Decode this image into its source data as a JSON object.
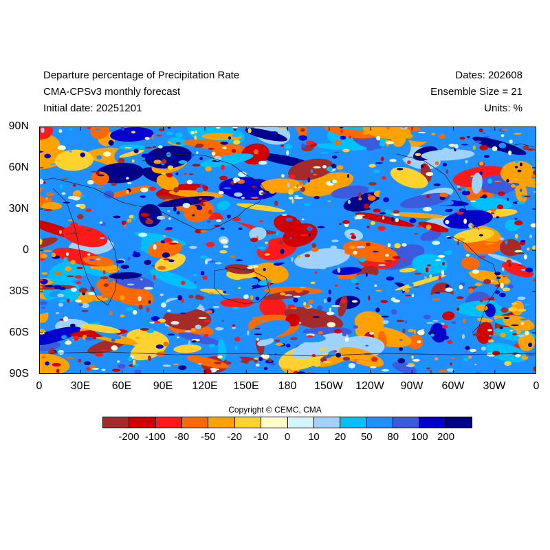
{
  "header": {
    "title": "Departure percentage of Precipitation Rate",
    "model": "CMA-CPSv3 monthly forecast",
    "initial_date": "Initial date: 20251201",
    "dates": "Dates: 202608",
    "ensemble": "Ensemble Size = 21",
    "units": "Units: %"
  },
  "map": {
    "lat_labels": [
      "90N",
      "60N",
      "30N",
      "0",
      "30S",
      "60S",
      "90S"
    ],
    "lon_labels": [
      "0",
      "30E",
      "60E",
      "90E",
      "120E",
      "150E",
      "180",
      "150W",
      "120W",
      "90W",
      "60W",
      "30W",
      "0"
    ],
    "background_color": "#1e90ff",
    "coastline_color": "#222222"
  },
  "copyright": "Copyright © CEMC, CMA",
  "colorbar": {
    "labels": [
      "-200",
      "-100",
      "-80",
      "-50",
      "-20",
      "-10",
      "0",
      "10",
      "20",
      "50",
      "80",
      "100",
      "200"
    ],
    "colors": [
      "#a52a2a",
      "#d10000",
      "#ff1a1a",
      "#ff6a00",
      "#ffa200",
      "#ffd230",
      "#ffffc8",
      "#d2f5ff",
      "#a0d2ff",
      "#00bfff",
      "#1e90ff",
      "#3c5adc",
      "#0000cd",
      "#00008b"
    ]
  }
}
